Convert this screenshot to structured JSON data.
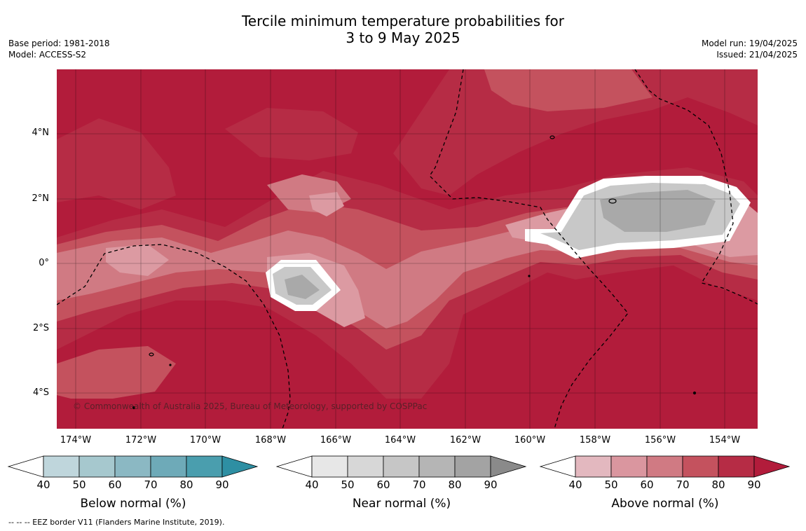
{
  "title": {
    "line1": "Tercile minimum temperature probabilities for",
    "line2": "3 to 9 May 2025"
  },
  "meta": {
    "base_period": "Base period: 1981-2018",
    "model": "Model: ACCESS-S2",
    "model_run": "Model run: 19/04/2025",
    "issued": "Issued: 21/04/2025"
  },
  "map": {
    "latitude_labels": [
      "4°N",
      "2°N",
      "0°",
      "2°S",
      "4°S"
    ],
    "longitude_labels": [
      "174°W",
      "172°W",
      "170°W",
      "168°W",
      "166°W",
      "164°W",
      "162°W",
      "160°W",
      "158°W",
      "156°W",
      "154°W"
    ],
    "copyright": "© Commonwealth of Australia 2025, Bureau of Meteorology, supported by COSPPac",
    "colors": {
      "above_70_80": "#c4525e",
      "above_80_90": "#b62c45",
      "above_90": "#b21c3b",
      "above_60_70": "#d07a83",
      "above_50_60": "#dc9aa2",
      "near_60_70": "#c8c8c8",
      "near_70_80": "#a9a9a9"
    }
  },
  "legends": [
    {
      "label": "Below normal (%)",
      "ticks": [
        "40",
        "50",
        "60",
        "70",
        "80",
        "90"
      ],
      "colors": [
        "#bfd6dc",
        "#a6c8ce",
        "#8bb8c3",
        "#6eaab8",
        "#4a9eae",
        "#2e8fa3"
      ]
    },
    {
      "label": "Near normal (%)",
      "ticks": [
        "40",
        "50",
        "60",
        "70",
        "80",
        "90"
      ],
      "colors": [
        "#e7e7e7",
        "#d7d7d7",
        "#c6c6c6",
        "#b5b5b5",
        "#a3a3a3",
        "#8a8a8a"
      ]
    },
    {
      "label": "Above normal (%)",
      "ticks": [
        "40",
        "50",
        "60",
        "70",
        "80",
        "90"
      ],
      "colors": [
        "#e3b8bf",
        "#da969f",
        "#d07a83",
        "#c4525e",
        "#b62c45",
        "#b21c3b"
      ]
    }
  ],
  "footnote": "--  --  -- EEZ border V11 (Flanders Marine Institute, 2019)."
}
